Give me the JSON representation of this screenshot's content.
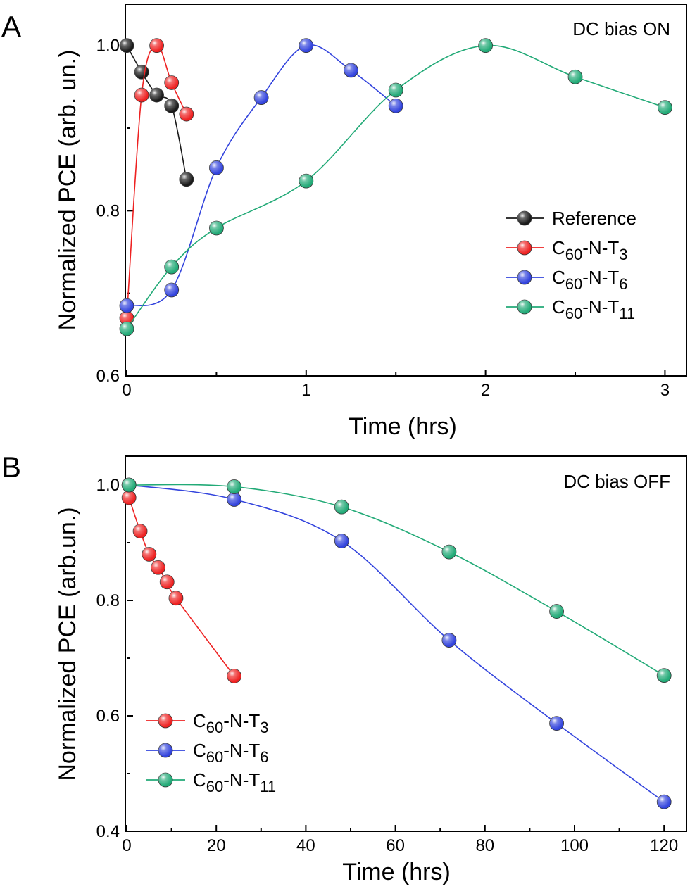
{
  "colors": {
    "Reference": "#1a1a1a",
    "C60-N-T3": "#ee2222",
    "C60-N-T6": "#3344dd",
    "C60-N-T11": "#22aa77"
  },
  "chart_data": [
    {
      "panel_label": "A",
      "type": "line",
      "annotation": "DC bias ON",
      "xlabel": "Time (hrs)",
      "ylabel": "Normalized PCE (arb. un.)",
      "xlim": [
        0,
        3.12
      ],
      "ylim": [
        0.6,
        1.05
      ],
      "xticks": [
        0,
        1,
        2,
        3
      ],
      "xtick_labels": [
        "0",
        "1",
        "2",
        "3"
      ],
      "yticks": [
        0.6,
        0.8,
        1.0
      ],
      "ytick_labels": [
        "0.6",
        "0.8",
        "1.0"
      ],
      "legend_position": "right",
      "series": [
        {
          "name": "Reference",
          "legend_main": "Reference",
          "legend_sub": "",
          "legend_tail": "",
          "legend_sub2": "",
          "color_key": "Reference",
          "x": [
            0.0,
            0.083,
            0.167,
            0.25,
            0.333
          ],
          "y": [
            1.0,
            0.968,
            0.94,
            0.927,
            0.838
          ]
        },
        {
          "name": "C60-N-T3",
          "legend_main": "C",
          "legend_sub": "60",
          "legend_tail": "-N-T",
          "legend_sub2": "3",
          "color_key": "C60-N-T3",
          "x": [
            0.0,
            0.083,
            0.167,
            0.25,
            0.333
          ],
          "y": [
            0.67,
            0.94,
            1.0,
            0.955,
            0.917
          ]
        },
        {
          "name": "C60-N-T6",
          "legend_main": "C",
          "legend_sub": "60",
          "legend_tail": "-N-T",
          "legend_sub2": "6",
          "color_key": "C60-N-T6",
          "x": [
            0.0,
            0.25,
            0.5,
            0.75,
            1.0,
            1.25,
            1.5
          ],
          "y": [
            0.685,
            0.704,
            0.852,
            0.937,
            1.0,
            0.97,
            0.927
          ]
        },
        {
          "name": "C60-N-T11",
          "legend_main": "C",
          "legend_sub": "60",
          "legend_tail": "-N-T",
          "legend_sub2": "11",
          "color_key": "C60-N-T11",
          "x": [
            0.0,
            0.25,
            0.5,
            1.0,
            1.5,
            2.0,
            2.5,
            3.0
          ],
          "y": [
            0.657,
            0.732,
            0.779,
            0.836,
            0.946,
            1.0,
            0.962,
            0.925
          ]
        }
      ]
    },
    {
      "panel_label": "B",
      "type": "line",
      "annotation": "DC bias OFF",
      "xlabel": "Time (hrs)",
      "ylabel": "Normalized PCE  (arb.un.)",
      "xlim": [
        0,
        125
      ],
      "ylim": [
        0.4,
        1.05
      ],
      "xticks": [
        0,
        20,
        40,
        60,
        80,
        100,
        120
      ],
      "xtick_labels": [
        "0",
        "20",
        "40",
        "60",
        "80",
        "100",
        "120"
      ],
      "yticks": [
        0.4,
        0.6,
        0.8,
        1.0
      ],
      "ytick_labels": [
        "0.4",
        "0.6",
        "0.8",
        "1.0"
      ],
      "legend_position": "bottom-left",
      "series": [
        {
          "name": "C60-N-T3",
          "legend_main": "C",
          "legend_sub": "60",
          "legend_tail": "-N-T",
          "legend_sub2": "3",
          "color_key": "C60-N-T3",
          "x": [
            0.5,
            3,
            5,
            7,
            9,
            11,
            24
          ],
          "y": [
            0.978,
            0.92,
            0.88,
            0.857,
            0.832,
            0.804,
            0.669
          ]
        },
        {
          "name": "C60-N-T6",
          "legend_main": "C",
          "legend_sub": "60",
          "legend_tail": "-N-T",
          "legend_sub2": "6",
          "color_key": "C60-N-T6",
          "x": [
            0.5,
            24,
            48,
            72,
            96,
            120
          ],
          "y": [
            1.0,
            0.975,
            0.903,
            0.731,
            0.587,
            0.451
          ]
        },
        {
          "name": "C60-N-T11",
          "legend_main": "C",
          "legend_sub": "60",
          "legend_tail": "-N-T",
          "legend_sub2": "11",
          "color_key": "C60-N-T11",
          "x": [
            0.5,
            24,
            48,
            72,
            96,
            120
          ],
          "y": [
            1.0,
            0.997,
            0.962,
            0.884,
            0.781,
            0.67
          ]
        }
      ]
    }
  ]
}
